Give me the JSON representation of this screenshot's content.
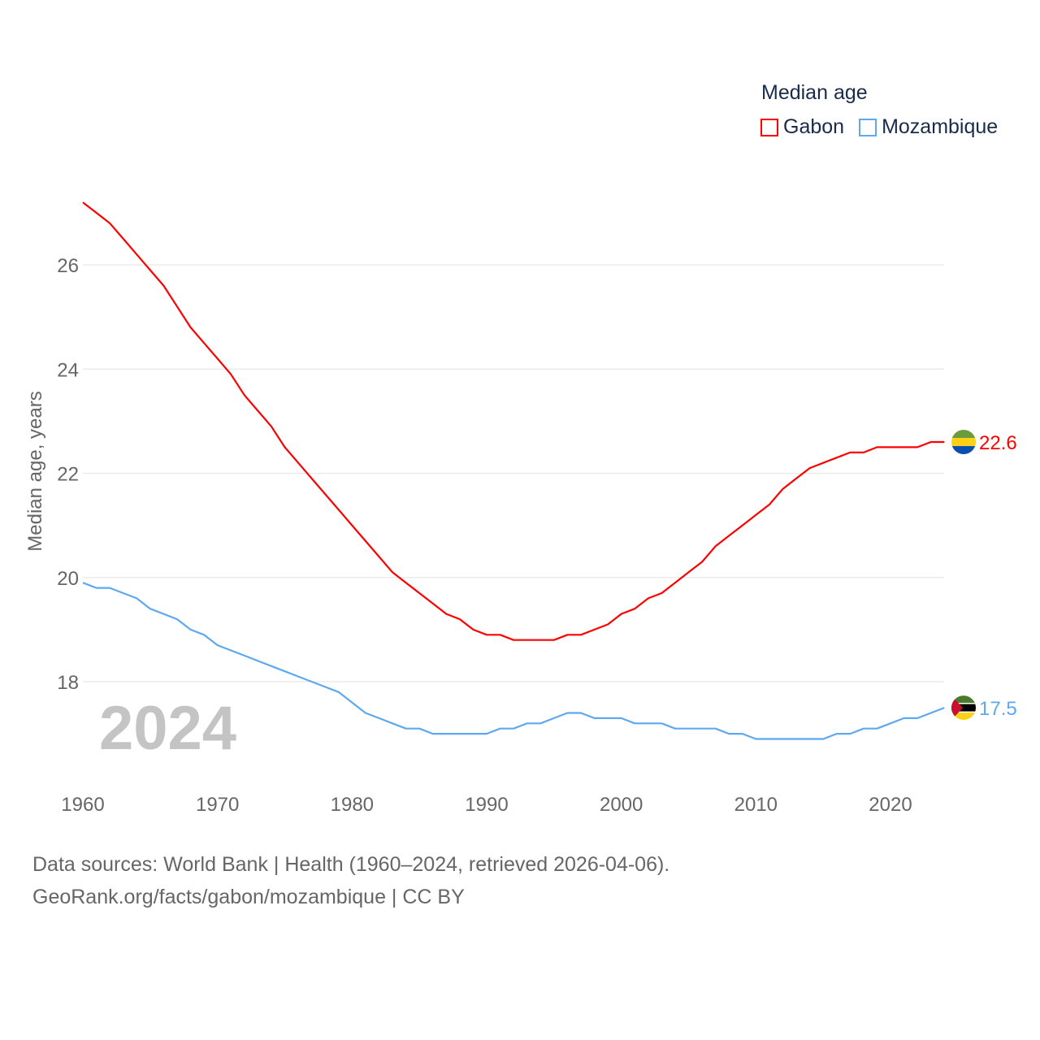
{
  "legend": {
    "title": "Median age",
    "items": [
      {
        "label": "Gabon"
      },
      {
        "label": "Mozambique"
      }
    ]
  },
  "year_watermark": "2024",
  "footer": {
    "line1": "Data sources: World Bank | Health (1960–2024, retrieved 2026-04-06).",
    "line2": "GeoRank.org/facts/gabon/mozambique | CC BY"
  },
  "chart_data": {
    "type": "line",
    "title": "Median age",
    "xlabel": "",
    "ylabel": "Median age, years",
    "xlim": [
      1960,
      2024
    ],
    "ylim": [
      16.2,
      27.4
    ],
    "grid": true,
    "legend_position": "top-right",
    "x_ticks": [
      "1960",
      "1970",
      "1980",
      "1990",
      "2000",
      "2010",
      "2020"
    ],
    "y_ticks": [
      "18",
      "20",
      "22",
      "24",
      "26"
    ],
    "x": [
      1960,
      1961,
      1962,
      1963,
      1964,
      1965,
      1966,
      1967,
      1968,
      1969,
      1970,
      1971,
      1972,
      1973,
      1974,
      1975,
      1976,
      1977,
      1978,
      1979,
      1980,
      1981,
      1982,
      1983,
      1984,
      1985,
      1986,
      1987,
      1988,
      1989,
      1990,
      1991,
      1992,
      1993,
      1994,
      1995,
      1996,
      1997,
      1998,
      1999,
      2000,
      2001,
      2002,
      2003,
      2004,
      2005,
      2006,
      2007,
      2008,
      2009,
      2010,
      2011,
      2012,
      2013,
      2014,
      2015,
      2016,
      2017,
      2018,
      2019,
      2020,
      2021,
      2022,
      2023,
      2024
    ],
    "series": [
      {
        "name": "Gabon",
        "color": "#ff0000",
        "end_label": "22.6",
        "values": [
          27.2,
          27.0,
          26.8,
          26.5,
          26.2,
          25.9,
          25.6,
          25.2,
          24.8,
          24.5,
          24.2,
          23.9,
          23.5,
          23.2,
          22.9,
          22.5,
          22.2,
          21.9,
          21.6,
          21.3,
          21.0,
          20.7,
          20.4,
          20.1,
          19.9,
          19.7,
          19.5,
          19.3,
          19.2,
          19.0,
          18.9,
          18.9,
          18.8,
          18.8,
          18.8,
          18.8,
          18.9,
          18.9,
          19.0,
          19.1,
          19.3,
          19.4,
          19.6,
          19.7,
          19.9,
          20.1,
          20.3,
          20.6,
          20.8,
          21.0,
          21.2,
          21.4,
          21.7,
          21.9,
          22.1,
          22.2,
          22.3,
          22.4,
          22.4,
          22.5,
          22.5,
          22.5,
          22.5,
          22.6,
          22.6
        ]
      },
      {
        "name": "Mozambique",
        "color": "#5ea8f0",
        "end_label": "17.5",
        "values": [
          19.9,
          19.8,
          19.8,
          19.7,
          19.6,
          19.4,
          19.3,
          19.2,
          19.0,
          18.9,
          18.7,
          18.6,
          18.5,
          18.4,
          18.3,
          18.2,
          18.1,
          18.0,
          17.9,
          17.8,
          17.6,
          17.4,
          17.3,
          17.2,
          17.1,
          17.1,
          17.0,
          17.0,
          17.0,
          17.0,
          17.0,
          17.1,
          17.1,
          17.2,
          17.2,
          17.3,
          17.4,
          17.4,
          17.3,
          17.3,
          17.3,
          17.2,
          17.2,
          17.2,
          17.1,
          17.1,
          17.1,
          17.1,
          17.0,
          17.0,
          16.9,
          16.9,
          16.9,
          16.9,
          16.9,
          16.9,
          17.0,
          17.0,
          17.1,
          17.1,
          17.2,
          17.3,
          17.3,
          17.4,
          17.5
        ]
      }
    ]
  }
}
